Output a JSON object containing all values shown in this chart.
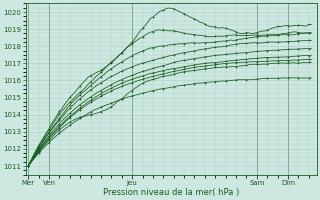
{
  "xlabel": "Pression niveau de la mer( hPa )",
  "ylim": [
    1010.5,
    1020.5
  ],
  "yticks": [
    1011,
    1012,
    1013,
    1014,
    1015,
    1016,
    1017,
    1018,
    1019,
    1020
  ],
  "xtick_labels": [
    "Mer",
    "Ven",
    "Jeu",
    "Sam",
    "Dim"
  ],
  "xtick_positions": [
    0,
    8,
    40,
    88,
    100
  ],
  "bg_color": "#cce8e0",
  "grid_color": "#aaccC4",
  "line_color": "#1a5c20",
  "total_points": 110,
  "num_series": 9,
  "series_endpoints": [
    1019.8,
    1019.2,
    1018.8,
    1018.3,
    1017.8,
    1017.5,
    1017.2,
    1016.8,
    1016.2
  ]
}
